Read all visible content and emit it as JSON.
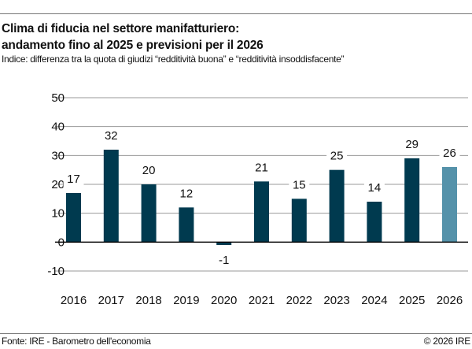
{
  "title_lines": [
    "Clima di fiducia nel settore manifatturiero:",
    "andamento fino al 2025 e previsioni per il 2026"
  ],
  "subtitle": "Indice: differenza tra la quota di giudizi “redditività buona” e “redditività insoddisfacente”",
  "source": "Fonte: IRE - Barometro dell'economia",
  "copyright": "© 2026 IRE",
  "colors": {
    "actual": "#003a4f",
    "forecast": "#5592aa",
    "grid": "#999999",
    "zero_line": "#000000"
  },
  "chart_data": {
    "type": "bar",
    "categories": [
      "2016",
      "2017",
      "2018",
      "2019",
      "2020",
      "2021",
      "2022",
      "2023",
      "2024",
      "2025",
      "2026"
    ],
    "values": [
      17,
      32,
      20,
      12,
      -1,
      21,
      15,
      25,
      14,
      29,
      26
    ],
    "labels": [
      "17",
      "32",
      "20",
      "12",
      "-1",
      "21",
      "15",
      "25",
      "14",
      "29",
      "26"
    ],
    "forecast": [
      false,
      false,
      false,
      false,
      false,
      false,
      false,
      false,
      false,
      false,
      true
    ],
    "ylim": [
      -10,
      50
    ],
    "yticks": [
      -10,
      0,
      10,
      20,
      30,
      40,
      50
    ],
    "ytick_labels": [
      "-10",
      "0",
      "10",
      "20",
      "30",
      "40",
      "50"
    ],
    "grid": true,
    "xlabel": "",
    "ylabel": ""
  }
}
